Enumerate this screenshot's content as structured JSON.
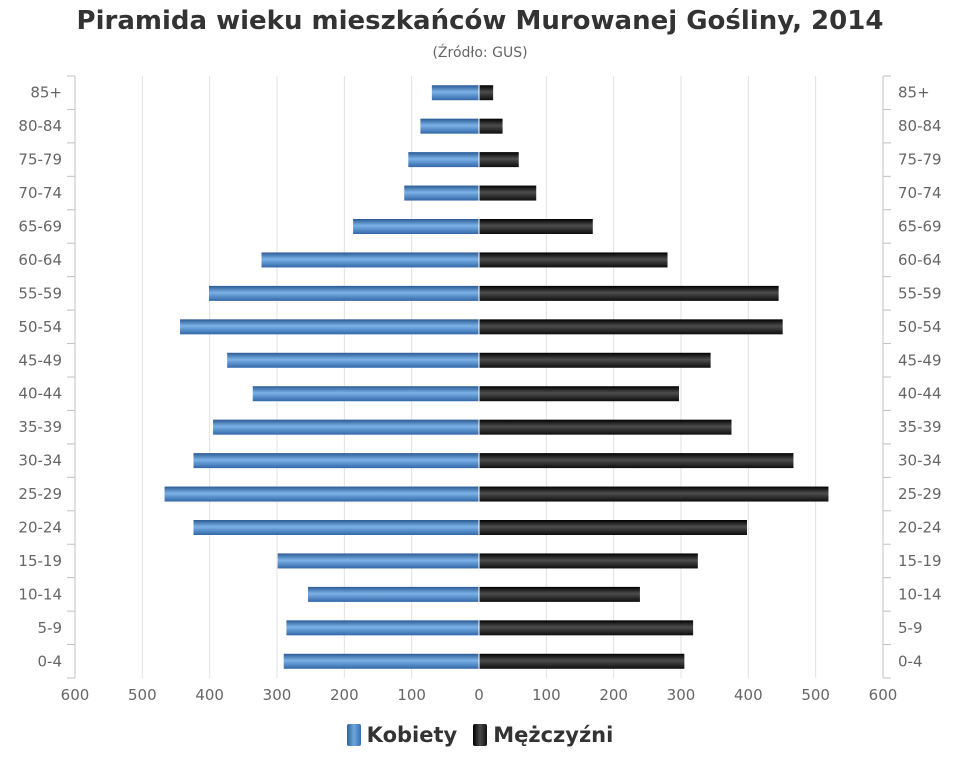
{
  "chart_data": {
    "type": "bar",
    "orientation": "horizontal-pyramid",
    "title": "Piramida wieku mieszkańców Murowanej Gośliny, 2014",
    "subtitle": "(Źródło: GUS)",
    "categories": [
      "85+",
      "80-84",
      "75-79",
      "70-74",
      "65-69",
      "60-64",
      "55-59",
      "50-54",
      "45-49",
      "40-44",
      "35-39",
      "30-34",
      "25-29",
      "20-24",
      "15-19",
      "10-14",
      "5-9",
      "0-4"
    ],
    "series": [
      {
        "name": "Kobiety",
        "color": "#4682c8",
        "values": [
          70,
          87,
          105,
          111,
          187,
          323,
          401,
          444,
          374,
          336,
          395,
          424,
          467,
          424,
          299,
          254,
          286,
          290
        ]
      },
      {
        "name": "Mężczyźni",
        "color": "#1a1a1a",
        "values": [
          21,
          35,
          59,
          85,
          169,
          280,
          445,
          451,
          344,
          297,
          375,
          467,
          519,
          398,
          325,
          239,
          318,
          305
        ]
      }
    ],
    "xlim": [
      -600,
      600
    ],
    "xticks": [
      "600",
      "500",
      "400",
      "300",
      "200",
      "100",
      "0",
      "100",
      "200",
      "300",
      "400",
      "500",
      "600"
    ],
    "grid": true,
    "legend_position": "bottom-center"
  }
}
